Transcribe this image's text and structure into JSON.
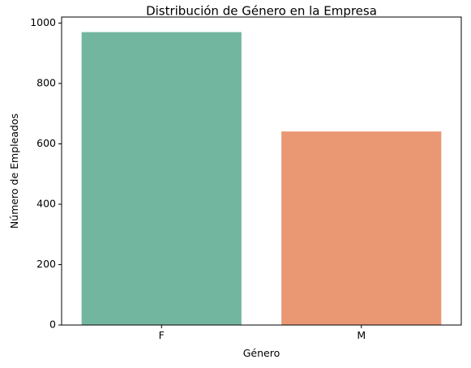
{
  "chart_data": {
    "type": "bar",
    "title": "Distribución de Género en la Empresa",
    "xlabel": "Género",
    "ylabel": "Número de Empleados",
    "categories": [
      "F",
      "M"
    ],
    "values": [
      970,
      641
    ],
    "ylim": [
      0,
      1020
    ],
    "yticks": [
      0,
      200,
      400,
      600,
      800,
      1000
    ],
    "colors": [
      "#73b6a0",
      "#ea9774"
    ],
    "grid": false,
    "legend": "none"
  }
}
